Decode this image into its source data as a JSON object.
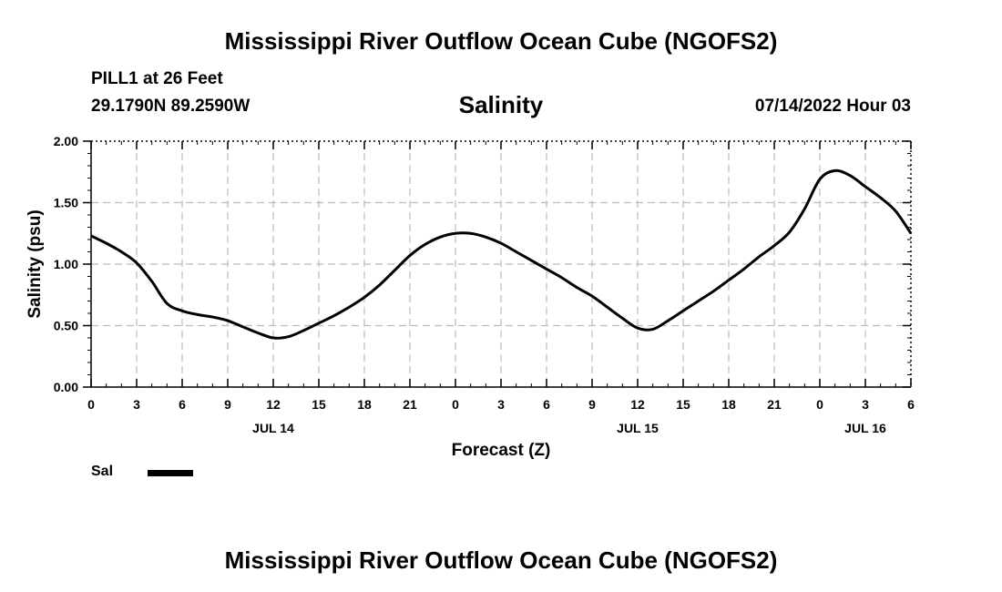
{
  "header": {
    "title": "Mississippi River Outflow Ocean Cube (NGOFS2)",
    "station": "PILL1 at 26 Feet",
    "coordinates": "29.1790N  89.2590W",
    "variable": "Salinity",
    "datetime": "07/14/2022 Hour 03"
  },
  "footer": {
    "title": "Mississippi River Outflow Ocean Cube (NGOFS2)"
  },
  "legend": {
    "label": "Sal",
    "color": "#000000"
  },
  "chart_data": {
    "type": "line",
    "title": "Salinity",
    "xlabel": "Forecast (Z)",
    "ylabel": "Salinity (psu)",
    "xlim": [
      0,
      54
    ],
    "ylim": [
      0,
      2
    ],
    "grid": true,
    "x_tick_values": [
      0,
      3,
      6,
      9,
      12,
      15,
      18,
      21,
      24,
      27,
      30,
      33,
      36,
      39,
      42,
      45,
      48,
      51,
      54
    ],
    "x_tick_labels": [
      "0",
      "3",
      "6",
      "9",
      "12",
      "15",
      "18",
      "21",
      "0",
      "3",
      "6",
      "9",
      "12",
      "15",
      "18",
      "21",
      "0",
      "3",
      "6"
    ],
    "day_labels": [
      {
        "x": 12,
        "label": "JUL 14"
      },
      {
        "x": 36,
        "label": "JUL 15"
      },
      {
        "x": 51,
        "label": "JUL 16"
      }
    ],
    "y_ticks": [
      0,
      0.5,
      1,
      1.5,
      2
    ],
    "y_tick_labels": [
      "0.00",
      "0.50",
      "1.00",
      "1.50",
      "2.00"
    ],
    "series": [
      {
        "name": "Sal",
        "x": [
          0,
          1,
          2,
          3,
          4,
          5,
          6,
          7,
          8,
          9,
          10,
          11,
          12,
          13,
          14,
          15,
          16,
          17,
          18,
          19,
          20,
          21,
          22,
          23,
          24,
          25,
          26,
          27,
          28,
          29,
          30,
          31,
          32,
          33,
          34,
          35,
          36,
          37,
          38,
          39,
          40,
          41,
          42,
          43,
          44,
          45,
          46,
          47,
          48,
          49,
          50,
          51,
          52,
          53,
          54
        ],
        "values": [
          1.23,
          1.17,
          1.1,
          1.01,
          0.86,
          0.68,
          0.62,
          0.59,
          0.57,
          0.54,
          0.49,
          0.44,
          0.4,
          0.41,
          0.46,
          0.52,
          0.58,
          0.65,
          0.73,
          0.83,
          0.95,
          1.07,
          1.16,
          1.22,
          1.25,
          1.25,
          1.22,
          1.17,
          1.1,
          1.03,
          0.96,
          0.89,
          0.81,
          0.74,
          0.65,
          0.56,
          0.48,
          0.47,
          0.54,
          0.62,
          0.7,
          0.78,
          0.87,
          0.96,
          1.06,
          1.15,
          1.26,
          1.45,
          1.69,
          1.76,
          1.72,
          1.63,
          1.54,
          1.43,
          1.25
        ]
      }
    ]
  }
}
